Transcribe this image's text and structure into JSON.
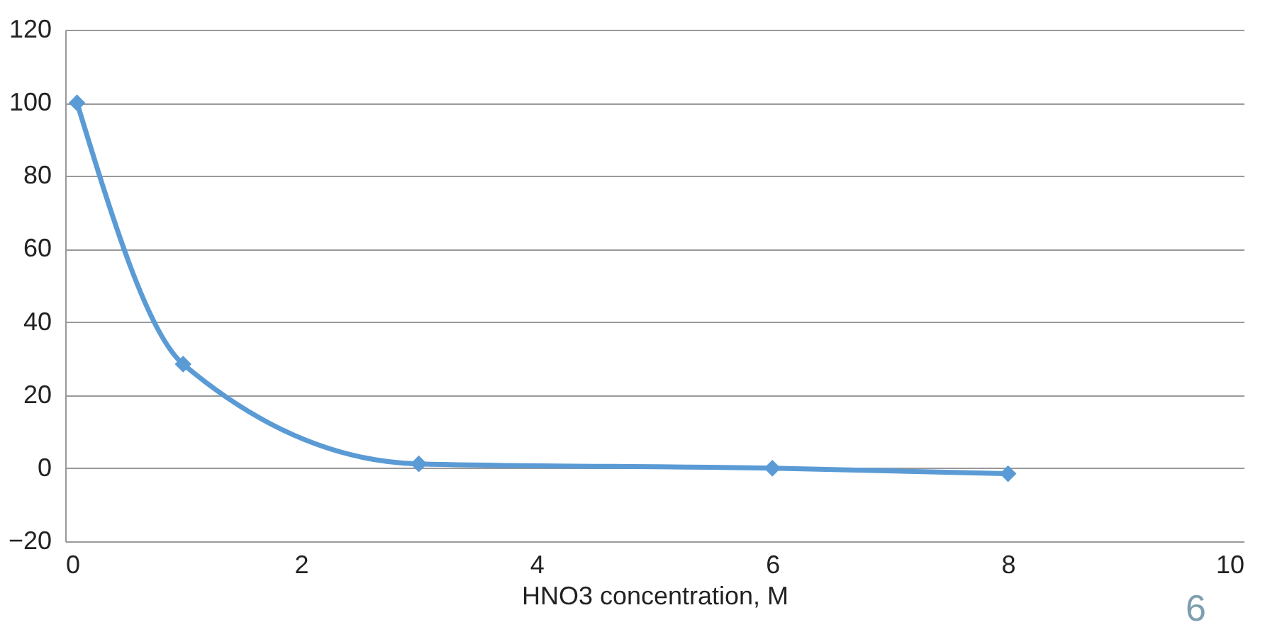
{
  "chart_data": {
    "type": "line",
    "xlabel": "HNO3 concentration, M",
    "x": [
      0.1,
      1,
      3,
      6,
      8
    ],
    "series": [
      {
        "color": "#5b9bd5",
        "values": [
          100,
          28.5,
          1.2,
          0,
          -1.5
        ]
      }
    ],
    "xlim": [
      0,
      10
    ],
    "xticks": [
      0,
      2,
      4,
      6,
      8,
      10
    ],
    "ylim": [
      -20,
      120
    ],
    "yticks": [
      -20,
      0,
      20,
      40,
      60,
      80,
      100,
      120
    ],
    "grid": "y",
    "marker": "diamond",
    "line_style": "solid",
    "annotations": [
      "6"
    ]
  }
}
